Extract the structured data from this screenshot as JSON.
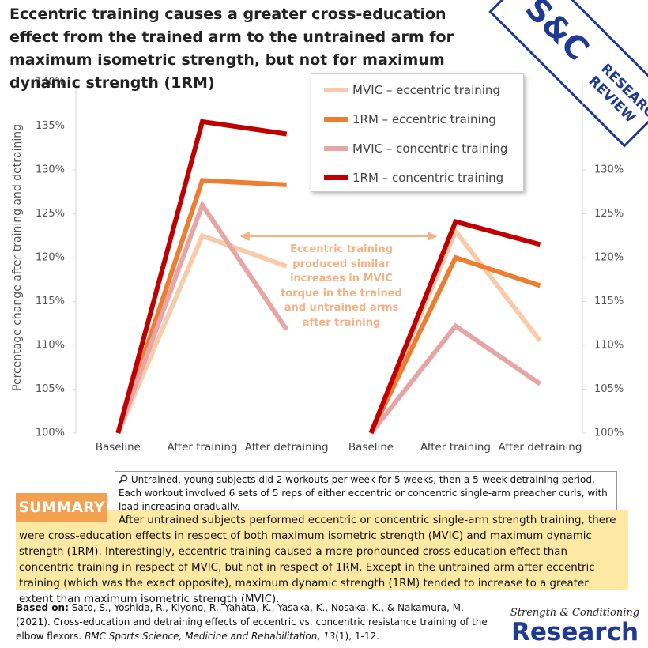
{
  "header": {
    "title": "Eccentric training causes a greater cross-education effect from the trained arm to the untrained arm for maximum isometric strength, but not for maximum dynamic strength (1RM)"
  },
  "logo": {
    "mark": "S&C",
    "line1": "RESEARCH",
    "line2": "REVIEW"
  },
  "chart_data": [
    {
      "type": "line",
      "y_label": "Percentage change after training and detraining",
      "categories": [
        "Baseline",
        "After training",
        "After detraining"
      ],
      "series": [
        {
          "name": "MVIC – eccentric training",
          "color": "#f8cbad",
          "values": [
            100,
            122.5,
            119
          ]
        },
        {
          "name": "1RM – eccentric training",
          "color": "#ed7d31",
          "values": [
            100,
            128.8,
            128.3
          ]
        },
        {
          "name": "MVIC – concentric training",
          "color": "#e6a6a8",
          "values": [
            100,
            126,
            111.8
          ]
        },
        {
          "name": "1RM – concentric training",
          "color": "#c00000",
          "values": [
            100,
            135.5,
            134.1
          ]
        }
      ],
      "ylim": [
        100,
        140
      ],
      "yticks": [
        {
          "value": 100,
          "label": "100%"
        },
        {
          "value": 105,
          "label": "105%"
        },
        {
          "value": 110,
          "label": "110%"
        },
        {
          "value": 115,
          "label": "115%"
        },
        {
          "value": 120,
          "label": "120%"
        },
        {
          "value": 125,
          "label": "125%"
        },
        {
          "value": 130,
          "label": "130%"
        },
        {
          "value": 135,
          "label": "135%"
        },
        {
          "value": 140,
          "label": "140%"
        }
      ],
      "annotation": "Eccentric training produced similar increases in MVIC torque in the trained and untrained arms after training"
    },
    {
      "type": "line",
      "categories": [
        "Baseline",
        "After training",
        "After detraining"
      ],
      "series": [
        {
          "name": "MVIC – eccentric training",
          "color": "#f8cbad",
          "values": [
            100,
            123,
            110.5
          ]
        },
        {
          "name": "1RM – eccentric training",
          "color": "#ed7d31",
          "values": [
            100,
            120,
            116.8
          ]
        },
        {
          "name": "MVIC – concentric training",
          "color": "#e6a6a8",
          "values": [
            100,
            112.2,
            105.6
          ]
        },
        {
          "name": "1RM – concentric training",
          "color": "#c00000",
          "values": [
            100,
            124.1,
            121.5
          ]
        }
      ],
      "ylim": [
        100,
        140
      ],
      "yticks": [
        {
          "value": 100,
          "label": "100%"
        },
        {
          "value": 105,
          "label": "105%"
        },
        {
          "value": 110,
          "label": "110%"
        },
        {
          "value": 115,
          "label": "115%"
        },
        {
          "value": 120,
          "label": "120%"
        },
        {
          "value": 125,
          "label": "125%"
        },
        {
          "value": 130,
          "label": "130%"
        }
      ]
    }
  ],
  "note": "Untrained, young subjects did 2 workouts per week for 5 weeks, then a 5-week detraining period. Each workout involved 6 sets of 5 reps of either eccentric or concentric single-arm preacher curls, with load increasing gradually.",
  "summary": {
    "label": "SUMMARY",
    "text": "After untrained subjects performed eccentric or concentric single-arm strength training, there were cross-education effects in respect of both maximum isometric strength (MVIC) and maximum dynamic strength (1RM). Interestingly, eccentric training caused a more pronounced cross-education effect than concentric training in respect of MVIC, but not in respect of 1RM. Except in the untrained arm after eccentric training (which was the exact opposite), maximum dynamic strength (1RM) tended to increase to a greater extent than maximum isometric strength (MVIC)."
  },
  "citation": {
    "label": "Based on:",
    "authors": "Sato, S., Yoshida, R., Kiyono, R., Yahata, K., Yasaka, K., Nosaka, K., & Nakamura, M. (2021). Cross-education and detraining effects of eccentric vs. concentric resistance training of the elbow flexors.",
    "journal": "BMC Sports Science, Medicine and Rehabilitation",
    "volume": "13",
    "pages": "(1), 1-12."
  },
  "footer_logo": {
    "line1": "Strength & Conditioning",
    "line2": "Research"
  }
}
